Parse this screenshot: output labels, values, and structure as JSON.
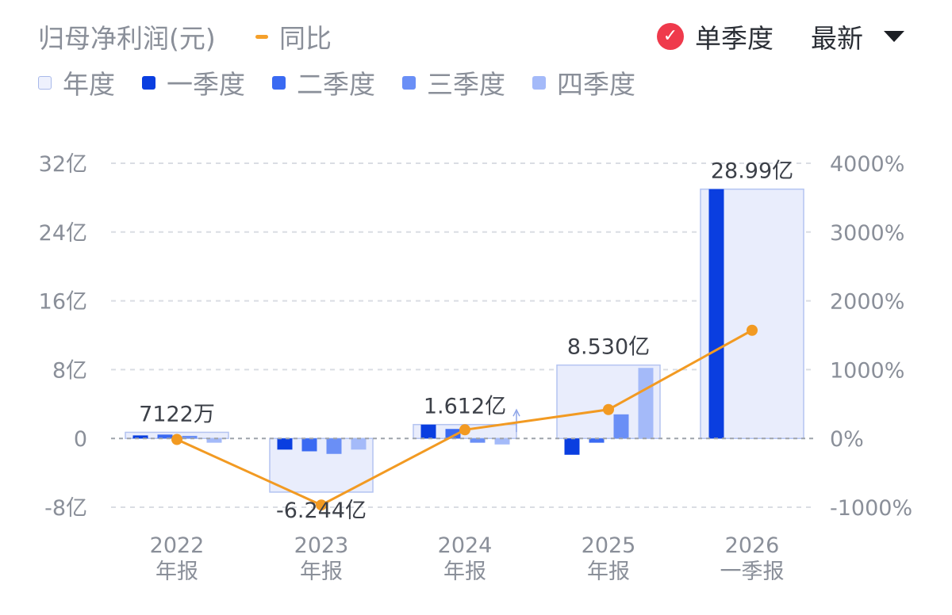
{
  "header": {
    "title": "归母净利润(元)",
    "yoy_label": "同比",
    "single_quarter_label": "单季度",
    "latest_label": "最新"
  },
  "legend": {
    "items": [
      {
        "label": "年度",
        "color": "#eef1fd"
      },
      {
        "label": "一季度",
        "color": "#0a3ee0"
      },
      {
        "label": "二季度",
        "color": "#3a6af2"
      },
      {
        "label": "三季度",
        "color": "#6a8ff6"
      },
      {
        "label": "四季度",
        "color": "#a4baf9"
      }
    ]
  },
  "chart_data": {
    "type": "bar",
    "categories": [
      {
        "line1": "2022",
        "line2": "年报"
      },
      {
        "line1": "2023",
        "line2": "年报"
      },
      {
        "line1": "2024",
        "line2": "年报"
      },
      {
        "line1": "2025",
        "line2": "年报"
      },
      {
        "line1": "2026",
        "line2": "一季报"
      }
    ],
    "annual": [
      0.7122,
      -6.244,
      1.612,
      8.53,
      28.99
    ],
    "annual_labels": [
      "7122万",
      "-6.244亿",
      "1.612亿",
      "8.530亿",
      "28.99亿"
    ],
    "quarterly_series": [
      {
        "name": "一季度",
        "values": [
          0.35,
          -1.3,
          1.6,
          -1.9,
          28.99
        ]
      },
      {
        "name": "二季度",
        "values": [
          0.45,
          -1.5,
          1.1,
          -0.5,
          null
        ]
      },
      {
        "name": "三季度",
        "values": [
          0.3,
          -1.8,
          -0.5,
          2.8,
          null
        ]
      },
      {
        "name": "四季度",
        "values": [
          -0.5,
          -1.3,
          -0.7,
          8.2,
          null
        ]
      }
    ],
    "yoy_series": {
      "name": "同比",
      "values": [
        -15,
        -968,
        126,
        420,
        1572
      ]
    },
    "left_axis": {
      "min": -8,
      "max": 32,
      "ticks": [
        32,
        24,
        16,
        8,
        0,
        -8
      ],
      "labels": [
        "32亿",
        "24亿",
        "16亿",
        "8亿",
        "0",
        "-8亿"
      ]
    },
    "right_axis": {
      "min": -1000,
      "max": 4000,
      "ticks": [
        4000,
        3000,
        2000,
        1000,
        0,
        -1000
      ],
      "labels": [
        "4000%",
        "3000%",
        "2000%",
        "1000%",
        "0%",
        "-1000%"
      ]
    },
    "grid": true,
    "colors": {
      "annual_fill": "#e9edfc",
      "annual_stroke": "#b4c4f1",
      "yoy_line": "#f29a22",
      "grid": "#dadde3",
      "zero_line": "#9ea3ab"
    }
  }
}
